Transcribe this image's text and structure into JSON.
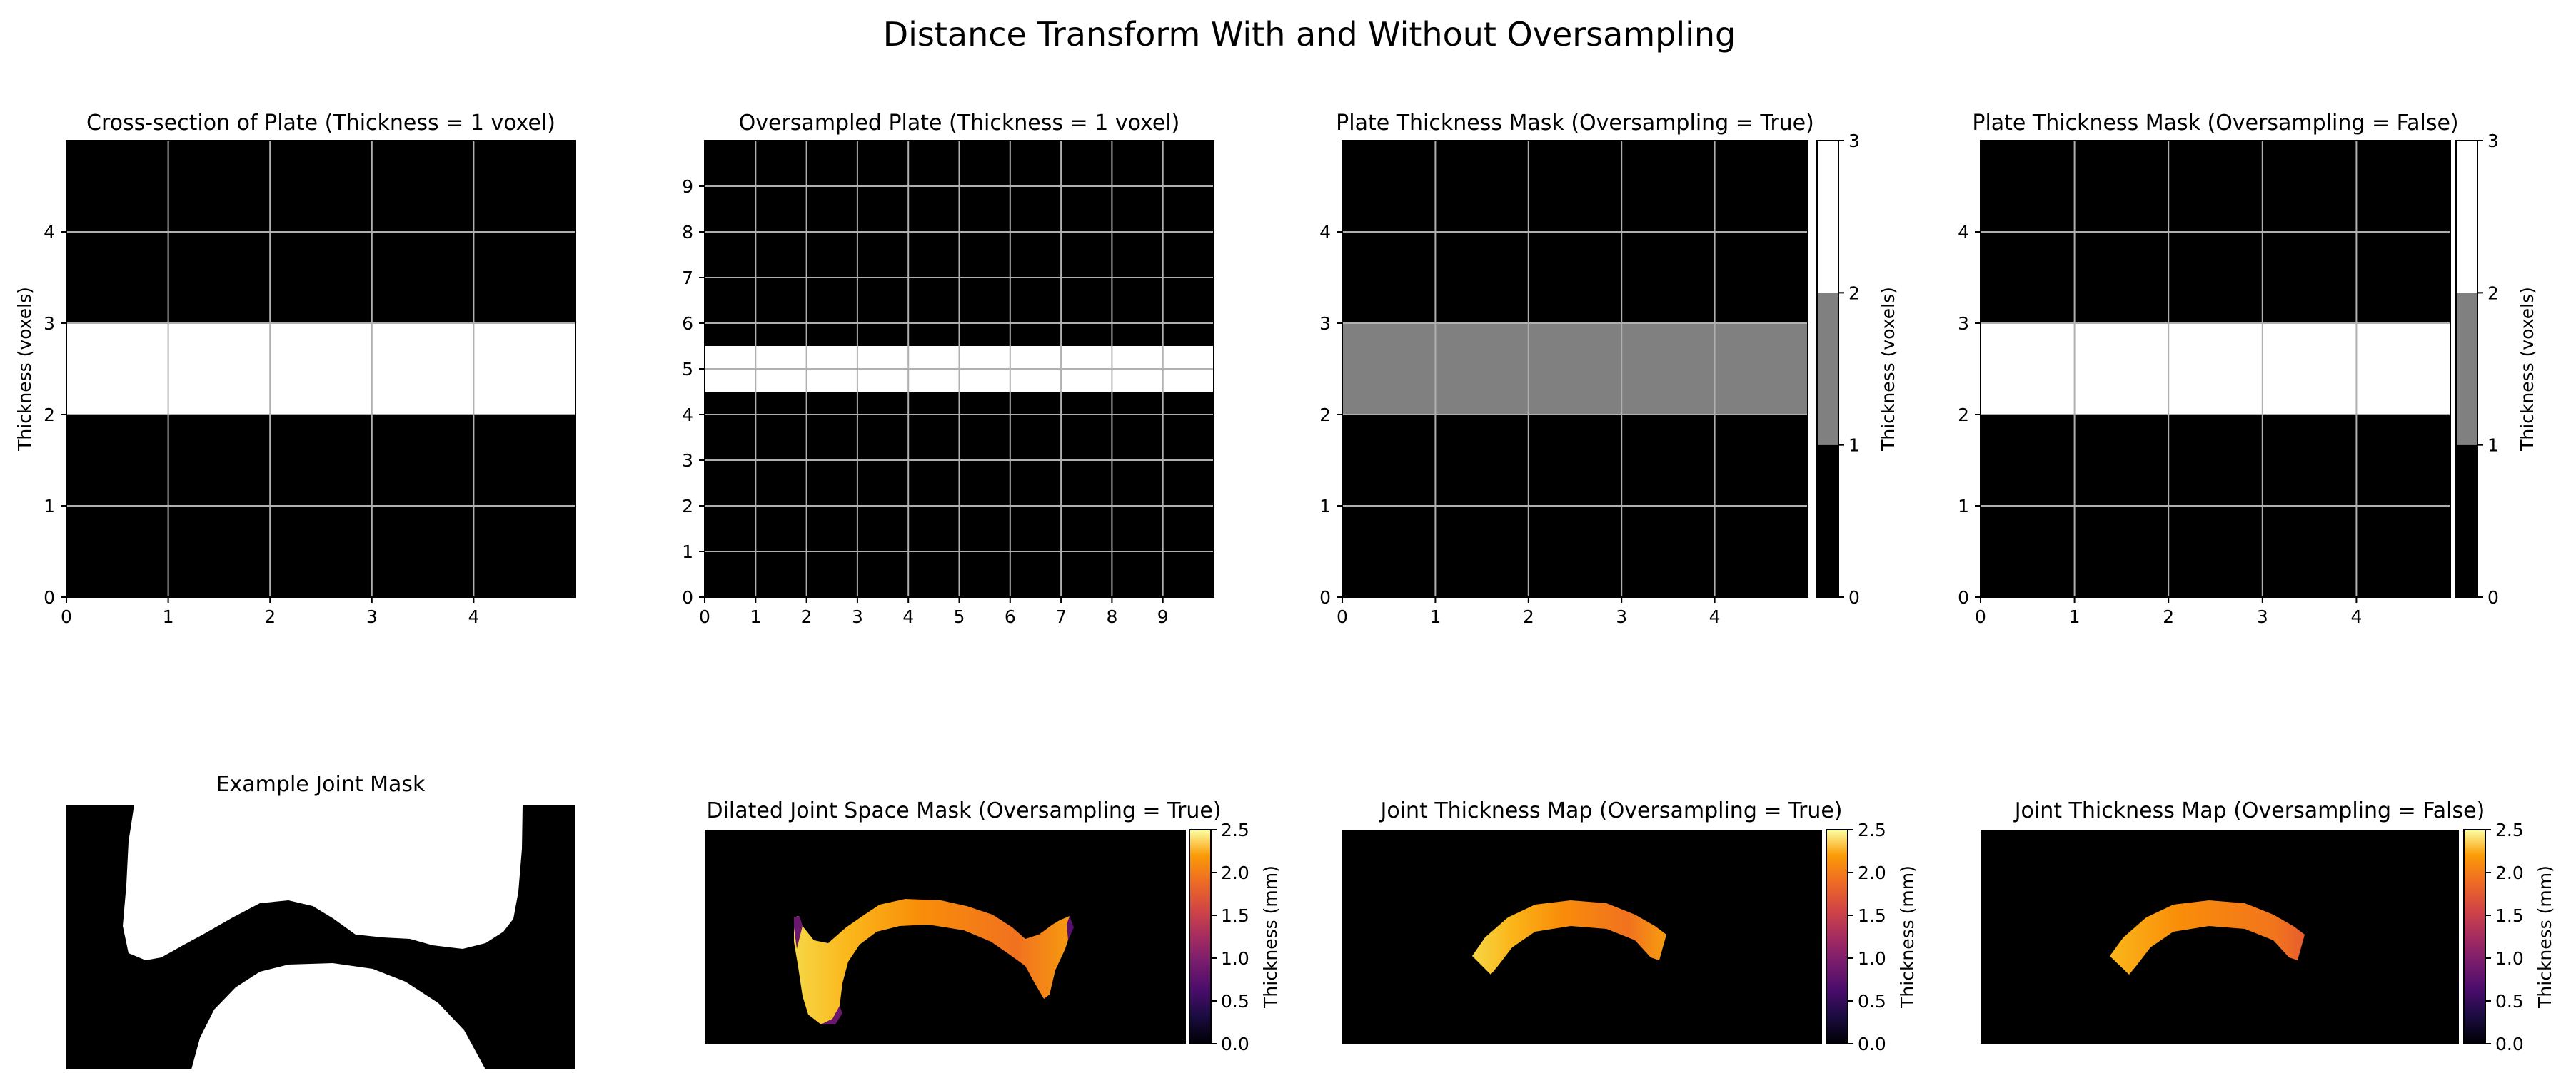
{
  "figure_title": "Distance Transform With and Without Oversampling",
  "colors": {
    "plate_white": "#ffffff",
    "plate_gray": "#808080",
    "background": "#000000",
    "grid": "#b0b0b0",
    "inferno_low": "#000004",
    "inferno_mid": "#bc3754",
    "inferno_high": "#fcffa4"
  },
  "chart_data": [
    {
      "type": "heatmap",
      "title": "Cross-section of Plate (Thickness = 1 voxel)",
      "xlabel": "",
      "ylabel": "Thickness (voxels)",
      "xlim": [
        0,
        5
      ],
      "ylim": [
        0,
        5
      ],
      "xticks": [
        0,
        1,
        2,
        3,
        4
      ],
      "yticks": [
        0,
        1,
        2,
        3,
        4
      ],
      "grid": true,
      "bands": [
        {
          "y0": 2,
          "y1": 3,
          "value": 1,
          "color": "#ffffff"
        }
      ]
    },
    {
      "type": "heatmap",
      "title": "Oversampled Plate (Thickness = 1 voxel)",
      "xlabel": "",
      "ylabel": "",
      "xlim": [
        0,
        10
      ],
      "ylim": [
        0,
        10
      ],
      "xticks": [
        0,
        1,
        2,
        3,
        4,
        5,
        6,
        7,
        8,
        9
      ],
      "yticks": [
        0,
        1,
        2,
        3,
        4,
        5,
        6,
        7,
        8,
        9
      ],
      "grid": true,
      "bands": [
        {
          "y0": 4.5,
          "y1": 5.5,
          "value": 1,
          "color": "#ffffff"
        }
      ]
    },
    {
      "type": "heatmap",
      "title": "Plate Thickness Mask (Oversampling = True)",
      "xlabel": "",
      "ylabel": "",
      "xlim": [
        0,
        5
      ],
      "ylim": [
        0,
        5
      ],
      "xticks": [
        0,
        1,
        2,
        3,
        4
      ],
      "yticks": [
        0,
        1,
        2,
        3,
        4
      ],
      "grid": true,
      "bands": [
        {
          "y0": 2,
          "y1": 3,
          "value": 2,
          "color": "#808080"
        }
      ],
      "colorbar": {
        "label": "Thickness (voxels)",
        "ticks": [
          0,
          1,
          2,
          3
        ],
        "range": [
          0,
          3
        ],
        "segments": [
          "#000000",
          "#808080",
          "#ffffff"
        ]
      }
    },
    {
      "type": "heatmap",
      "title": "Plate Thickness Mask (Oversampling = False)",
      "xlabel": "",
      "ylabel": "",
      "xlim": [
        0,
        5
      ],
      "ylim": [
        0,
        5
      ],
      "xticks": [
        0,
        1,
        2,
        3,
        4
      ],
      "yticks": [
        0,
        1,
        2,
        3,
        4
      ],
      "grid": true,
      "bands": [
        {
          "y0": 2,
          "y1": 3,
          "value": 3,
          "color": "#ffffff"
        }
      ],
      "colorbar": {
        "label": "Thickness (voxels)",
        "ticks": [
          0,
          1,
          2,
          3
        ],
        "range": [
          0,
          3
        ],
        "segments": [
          "#000000",
          "#808080",
          "#ffffff"
        ]
      }
    },
    {
      "type": "heatmap",
      "title": "Example Joint Mask",
      "xlabel": "",
      "ylabel": "",
      "axes_visible": false
    },
    {
      "type": "heatmap",
      "title": "Dilated Joint Space Mask (Oversampling = True)",
      "xlabel": "",
      "ylabel": "",
      "axes_visible": false,
      "colorbar": {
        "label": "Thickness (mm)",
        "ticks": [
          0.0,
          0.5,
          1.0,
          1.5,
          2.0,
          2.5
        ],
        "tick_labels": [
          "0.0",
          "0.5",
          "1.0",
          "1.5",
          "2.0",
          "2.5"
        ],
        "range": [
          0,
          2.5
        ],
        "colormap": "inferno"
      }
    },
    {
      "type": "heatmap",
      "title": "Joint Thickness Map (Oversampling = True)",
      "xlabel": "",
      "ylabel": "",
      "axes_visible": false,
      "colorbar": {
        "label": "Thickness (mm)",
        "ticks": [
          0.0,
          0.5,
          1.0,
          1.5,
          2.0,
          2.5
        ],
        "tick_labels": [
          "0.0",
          "0.5",
          "1.0",
          "1.5",
          "2.0",
          "2.5"
        ],
        "range": [
          0,
          2.5
        ],
        "colormap": "inferno"
      }
    },
    {
      "type": "heatmap",
      "title": "Joint Thickness Map (Oversampling = False)",
      "xlabel": "",
      "ylabel": "",
      "axes_visible": false,
      "colorbar": {
        "label": "Thickness (mm)",
        "ticks": [
          0.0,
          0.5,
          1.0,
          1.5,
          2.0,
          2.5
        ],
        "tick_labels": [
          "0.0",
          "0.5",
          "1.0",
          "1.5",
          "2.0",
          "2.5"
        ],
        "range": [
          0,
          2.5
        ],
        "colormap": "inferno"
      }
    }
  ]
}
